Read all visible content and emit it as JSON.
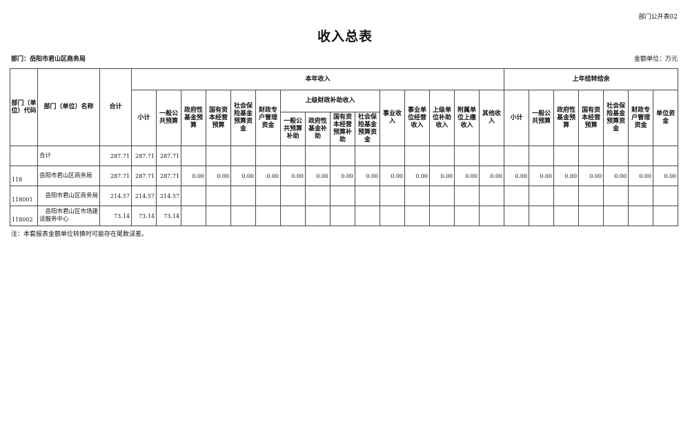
{
  "form_no": "部门公开表02",
  "title": "收入总表",
  "department": "部门：岳阳市君山区商务局",
  "unit": "金额单位：万元",
  "headers": {
    "code": "部门（单位）代码",
    "name": "部门（单位）名称",
    "total": "合计",
    "current_year": "本年收入",
    "prior_year": "上年结转结余",
    "superior_subsidy": "上级财政补助收入",
    "current_cols_a": [
      "小计",
      "一般公共预算",
      "政府性基金预算",
      "国有资本经营预算",
      "社会保险基金预算资金",
      "财政专户管理资金"
    ],
    "superior_cols": [
      "一般公共预算补助",
      "政府性基金补助",
      "国有资本经营预算补助",
      "社会保险基金预算资金"
    ],
    "current_cols_b": [
      "事业收入",
      "事业单位经营收入",
      "上级单位补助收入",
      "附属单位上缴收入",
      "其他收入"
    ],
    "prior_cols": [
      "小计",
      "一般公共预算",
      "政府性基金预算",
      "国有资本经营预算",
      "社会保险基金预算资金",
      "财政专户管理资金",
      "单位资金"
    ]
  },
  "rows": [
    {
      "code": "",
      "name": "合计",
      "values": [
        "287.71",
        "287.71",
        "287.71",
        "",
        "",
        "",
        "",
        "",
        "",
        "",
        "",
        "",
        "",
        "",
        "",
        "",
        "",
        "",
        "",
        "",
        "",
        "",
        ""
      ]
    },
    {
      "code": "118",
      "name": "岳阳市君山区商务局",
      "values": [
        "287.71",
        "287.71",
        "287.71",
        "0.00",
        "0.00",
        "0.00",
        "0.00",
        "0.00",
        "0.00",
        "0.00",
        "0.00",
        "0.00",
        "0.00",
        "0.00",
        "0.00",
        "0.00",
        "0.00",
        "0.00",
        "0.00",
        "0.00",
        "0.00",
        "0.00",
        "0.00"
      ]
    },
    {
      "code": "118001",
      "name": "　岳阳市君山区商务局",
      "values": [
        "214.57",
        "214.57",
        "214.57",
        "",
        "",
        "",
        "",
        "",
        "",
        "",
        "",
        "",
        "",
        "",
        "",
        "",
        "",
        "",
        "",
        "",
        "",
        "",
        ""
      ]
    },
    {
      "code": "118002",
      "name": "　岳阳市君山区市场建设服务中心",
      "values": [
        "73.14",
        "73.14",
        "73.14",
        "",
        "",
        "",
        "",
        "",
        "",
        "",
        "",
        "",
        "",
        "",
        "",
        "",
        "",
        "",
        "",
        "",
        "",
        "",
        ""
      ]
    }
  ],
  "note": "注：本套报表金额单位转换时可能存在尾数误差。"
}
